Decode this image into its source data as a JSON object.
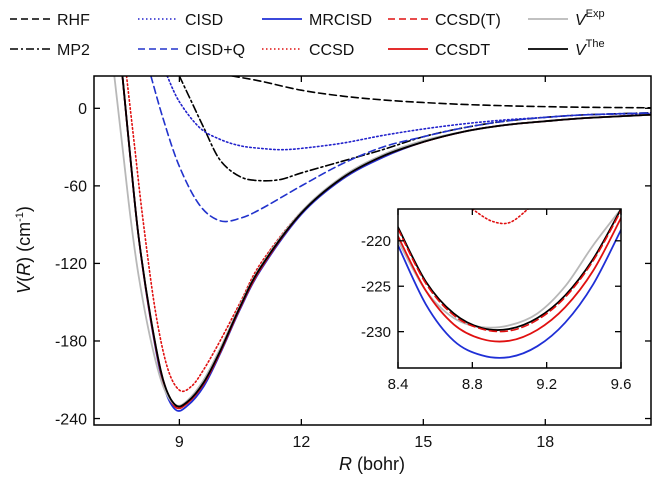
{
  "chart_data": [
    {
      "type": "line",
      "xlabel": "R (bohr)",
      "ylabel": "V(R) (cm-1)",
      "xlim": [
        6.9,
        20.6
      ],
      "ylim": [
        -245,
        25
      ],
      "xticks": [
        9,
        12,
        15,
        18
      ],
      "yticks": [
        0,
        -60,
        -120,
        -180,
        -240
      ],
      "legend": "top, two rows",
      "series": [
        {
          "name": "RHF",
          "color": "#000000",
          "dash": "dashed",
          "x": [
            10.3,
            11,
            12,
            13,
            14,
            15,
            16,
            17,
            18,
            19,
            20.6
          ],
          "y": [
            25,
            21,
            14,
            9.5,
            6.5,
            4.5,
            3,
            2,
            1.3,
            0.8,
            0.4
          ]
        },
        {
          "name": "MP2",
          "color": "#000000",
          "dash": "dashdot",
          "x": [
            9.0,
            9.3,
            9.6,
            10.0,
            10.5,
            11,
            11.5,
            12,
            13,
            14,
            15,
            16,
            17,
            18,
            19,
            20.6
          ],
          "y": [
            25,
            5,
            -15,
            -40,
            -53,
            -56,
            -55,
            -50,
            -41,
            -32,
            -22,
            -15,
            -10,
            -7,
            -5,
            -3.5
          ]
        },
        {
          "name": "CISD",
          "color": "#2222cc",
          "dash": "dotted",
          "x": [
            8.7,
            9.0,
            9.5,
            10.0,
            10.5,
            11.0,
            11.5,
            12.0,
            13,
            14,
            15,
            16,
            17,
            18,
            19,
            20.6
          ],
          "y": [
            25,
            5,
            -15,
            -24,
            -29,
            -31,
            -32,
            -31,
            -27,
            -21,
            -16,
            -12,
            -9,
            -7,
            -5,
            -4
          ]
        },
        {
          "name": "CISD+Q",
          "color": "#2233cc",
          "dash": "dashed",
          "x": [
            8.3,
            8.6,
            9.0,
            9.5,
            10.0,
            10.5,
            11,
            12,
            13,
            14,
            15,
            16,
            17,
            18,
            19,
            20.6
          ],
          "y": [
            25,
            -8,
            -45,
            -75,
            -87,
            -85,
            -78,
            -60,
            -43,
            -30,
            -22,
            -15,
            -10,
            -7,
            -5,
            -3.5
          ]
        },
        {
          "name": "MRCISD",
          "color": "#1f2fd6",
          "dash": "solid",
          "x": [
            7.6,
            7.8,
            8.0,
            8.3,
            8.6,
            8.9,
            9.2,
            9.6,
            10.0,
            10.5,
            11,
            12,
            13,
            14,
            15,
            16,
            17,
            18,
            19,
            20.6
          ],
          "y": [
            25,
            -40,
            -100,
            -165,
            -213,
            -233,
            -230,
            -215,
            -190,
            -155,
            -125,
            -82,
            -55,
            -38,
            -26,
            -18,
            -13,
            -10,
            -7.5,
            -5
          ]
        },
        {
          "name": "CCSD",
          "color": "#e01010",
          "dash": "dotted",
          "x": [
            7.7,
            7.9,
            8.1,
            8.4,
            8.7,
            9.0,
            9.3,
            9.6,
            10.0,
            10.5,
            11,
            12,
            13,
            14,
            15,
            16,
            17,
            18,
            19,
            20.6
          ],
          "y": [
            25,
            -30,
            -85,
            -155,
            -200,
            -218,
            -215,
            -202,
            -180,
            -150,
            -120,
            -80,
            -54,
            -37,
            -26,
            -18,
            -13,
            -10,
            -7.5,
            -5
          ]
        },
        {
          "name": "CCSD(T)",
          "color": "#e01010",
          "dash": "dashed",
          "x": [
            7.6,
            7.8,
            8.0,
            8.3,
            8.6,
            8.9,
            9.2,
            9.6,
            10.0,
            10.5,
            11,
            12,
            13,
            14,
            15,
            16,
            17,
            18,
            19,
            20.6
          ],
          "y": [
            25,
            -40,
            -100,
            -163,
            -210,
            -229.5,
            -227,
            -212,
            -188,
            -153,
            -123,
            -81,
            -54,
            -37,
            -26,
            -18,
            -13,
            -10,
            -7.5,
            -5
          ]
        },
        {
          "name": "CCSDT",
          "color": "#e01010",
          "dash": "solid",
          "x": [
            7.6,
            7.8,
            8.0,
            8.3,
            8.6,
            8.9,
            9.2,
            9.6,
            10.0,
            10.5,
            11,
            12,
            13,
            14,
            15,
            16,
            17,
            18,
            19,
            20.6
          ],
          "y": [
            25,
            -40,
            -100,
            -164,
            -211,
            -231,
            -228,
            -213,
            -189,
            -154,
            -124,
            -81,
            -54,
            -37,
            -26,
            -18,
            -13,
            -10,
            -7.5,
            -5
          ]
        },
        {
          "name": "V^Exp",
          "color": "#b8b8b8",
          "dash": "solid",
          "x": [
            7.4,
            7.6,
            7.8,
            8.0,
            8.3,
            8.6,
            8.9,
            9.2,
            9.6,
            10.0,
            10.5,
            11,
            12,
            13,
            14,
            15,
            16,
            17,
            18,
            19,
            20.6
          ],
          "y": [
            25,
            -30,
            -85,
            -130,
            -180,
            -215,
            -229.5,
            -226,
            -210,
            -186,
            -152,
            -122,
            -80,
            -53,
            -36,
            -25,
            -18,
            -13,
            -10,
            -7.5,
            -5
          ]
        },
        {
          "name": "V^The",
          "color": "#000000",
          "dash": "solid",
          "x": [
            7.6,
            7.8,
            8.0,
            8.3,
            8.6,
            8.9,
            9.2,
            9.6,
            10.0,
            10.5,
            11,
            12,
            13,
            14,
            15,
            16,
            17,
            18,
            19,
            20.6
          ],
          "y": [
            25,
            -40,
            -100,
            -163,
            -210,
            -229.5,
            -227,
            -212,
            -188,
            -153,
            -123,
            -81,
            -54,
            -37,
            -26,
            -18,
            -13,
            -10,
            -7.5,
            -5
          ]
        }
      ]
    },
    {
      "type": "line",
      "title": "",
      "xlim": [
        8.4,
        9.6
      ],
      "ylim": [
        -234,
        -216.5
      ],
      "xticks": [
        8.4,
        8.8,
        9.2,
        9.6
      ],
      "xticklabels": [
        "8.4",
        "8.8",
        "9.2",
        "9.6"
      ],
      "yticks": [
        -220,
        -225,
        -230
      ],
      "series": [
        {
          "name": "CCSD",
          "color": "#e01010",
          "dash": "dotted",
          "x": [
            8.8,
            8.9,
            9.0,
            9.1
          ],
          "y": [
            -216.5,
            -217.8,
            -218.0,
            -216.5
          ]
        },
        {
          "name": "V^Exp",
          "color": "#b8b8b8",
          "dash": "solid",
          "x": [
            8.4,
            8.55,
            8.7,
            8.85,
            9.0,
            9.15,
            9.3,
            9.45,
            9.6
          ],
          "y": [
            -220.0,
            -225.5,
            -228.5,
            -229.5,
            -229.3,
            -228.0,
            -225.0,
            -220.5,
            -216.5
          ]
        },
        {
          "name": "V^The",
          "color": "#000000",
          "dash": "solid",
          "x": [
            8.4,
            8.55,
            8.7,
            8.85,
            9.0,
            9.15,
            9.3,
            9.45,
            9.6
          ],
          "y": [
            -218.5,
            -224.5,
            -228.0,
            -229.6,
            -229.7,
            -228.5,
            -226.0,
            -222.0,
            -216.5
          ]
        },
        {
          "name": "CCSD(T)",
          "color": "#e01010",
          "dash": "dashed",
          "x": [
            8.4,
            8.55,
            8.7,
            8.85,
            9.0,
            9.15,
            9.3,
            9.45,
            9.6
          ],
          "y": [
            -218.7,
            -224.7,
            -228.2,
            -229.7,
            -229.9,
            -228.7,
            -226.2,
            -222.2,
            -216.7
          ]
        },
        {
          "name": "CCSDT",
          "color": "#e01010",
          "dash": "solid",
          "x": [
            8.4,
            8.55,
            8.7,
            8.85,
            9.0,
            9.15,
            9.3,
            9.45,
            9.6
          ],
          "y": [
            -219.5,
            -225.5,
            -229.2,
            -230.8,
            -231.0,
            -229.8,
            -227.3,
            -223.3,
            -217.5
          ]
        },
        {
          "name": "MRCISD",
          "color": "#1f2fd6",
          "dash": "solid",
          "x": [
            8.4,
            8.55,
            8.7,
            8.85,
            9.0,
            9.15,
            9.3,
            9.45,
            9.6
          ],
          "y": [
            -220.5,
            -227.0,
            -231.0,
            -232.6,
            -232.8,
            -231.6,
            -229.0,
            -224.8,
            -218.8
          ]
        }
      ]
    }
  ]
}
